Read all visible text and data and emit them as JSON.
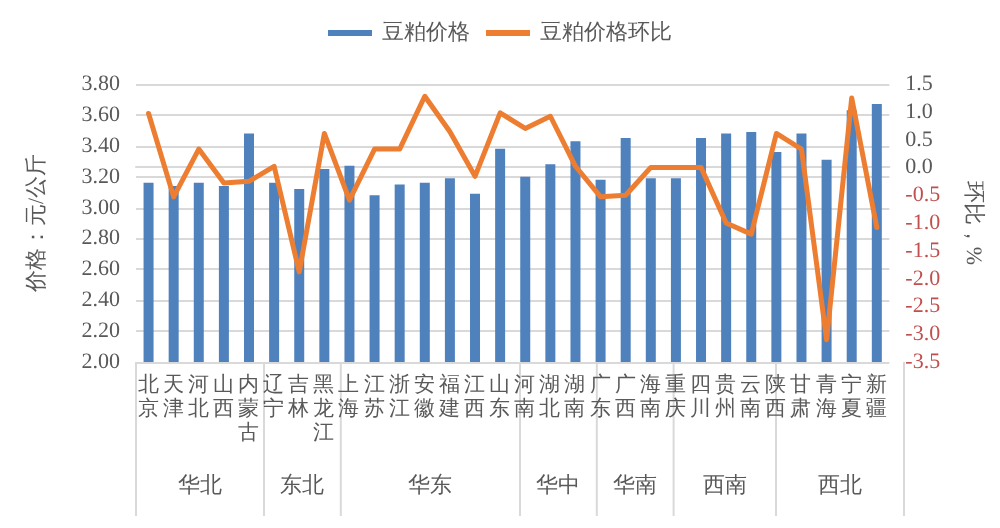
{
  "chart_data": {
    "type": "bar",
    "categories": [
      "北京",
      "天津",
      "河北",
      "山西",
      "内蒙古",
      "辽宁",
      "吉林",
      "黑龙江",
      "上海",
      "江苏",
      "浙江",
      "安徽",
      "福建",
      "江西",
      "山东",
      "河南",
      "湖北",
      "湖南",
      "广东",
      "广西",
      "海南",
      "重庆",
      "四川",
      "贵州",
      "云南",
      "陕西",
      "甘肃",
      "青海",
      "宁夏",
      "新疆"
    ],
    "series": [
      {
        "name": "豆粕价格",
        "color": "#4f81bd",
        "values": [
          3.16,
          3.14,
          3.16,
          3.14,
          3.48,
          3.16,
          3.12,
          3.25,
          3.27,
          3.08,
          3.15,
          3.16,
          3.19,
          3.09,
          3.38,
          3.2,
          3.28,
          3.43,
          3.18,
          3.45,
          3.19,
          3.19,
          3.45,
          3.48,
          3.49,
          3.36,
          3.48,
          3.31,
          3.63,
          3.67
        ]
      },
      {
        "name": "豆粕价格环比",
        "type": "line",
        "axis": "y2",
        "color": "#ed7d31",
        "values": [
          0.97,
          -0.53,
          0.33,
          -0.28,
          -0.25,
          0.02,
          -1.88,
          0.61,
          -0.59,
          0.33,
          0.33,
          1.28,
          0.64,
          -0.16,
          0.98,
          0.7,
          0.92,
          0.02,
          -0.53,
          -0.5,
          0.0,
          0.0,
          0.0,
          -1.0,
          -1.2,
          0.61,
          0.33,
          -3.1,
          1.25,
          -1.08
        ]
      }
    ],
    "ylabel": "价格：元/公斤",
    "y2label": "环比，%",
    "ylim": [
      2.0,
      3.8
    ],
    "yticks": [
      {
        "value": 2.0,
        "label": "2.00"
      },
      {
        "value": 2.2,
        "label": "2.20"
      },
      {
        "value": 2.4,
        "label": "2.40"
      },
      {
        "value": 2.6,
        "label": "2.60"
      },
      {
        "value": 2.8,
        "label": "2.80"
      },
      {
        "value": 3.0,
        "label": "3.00"
      },
      {
        "value": 3.2,
        "label": "3.20"
      },
      {
        "value": 3.4,
        "label": "3.40"
      },
      {
        "value": 3.6,
        "label": "3.60"
      },
      {
        "value": 3.8,
        "label": "3.80"
      }
    ],
    "y2lim": [
      -3.5,
      1.5
    ],
    "y2ticks": [
      {
        "value": -3.5,
        "label": "-3.5"
      },
      {
        "value": -3.0,
        "label": "-3.0"
      },
      {
        "value": -2.5,
        "label": "-2.5"
      },
      {
        "value": -2.0,
        "label": "-2.0"
      },
      {
        "value": -1.5,
        "label": "-1.5"
      },
      {
        "value": -1.0,
        "label": "-1.0"
      },
      {
        "value": -0.5,
        "label": "-0.5"
      },
      {
        "value": 0.0,
        "label": "0.0"
      },
      {
        "value": 0.5,
        "label": "0.5"
      },
      {
        "value": 1.0,
        "label": "1.0"
      },
      {
        "value": 1.5,
        "label": "1.5"
      }
    ],
    "annotations": [
      "华北",
      "东北",
      "华东",
      "华中",
      "华南",
      "西南",
      "西北"
    ],
    "grid": "y",
    "legend": "top",
    "marker": "none",
    "line_style": "solid"
  }
}
